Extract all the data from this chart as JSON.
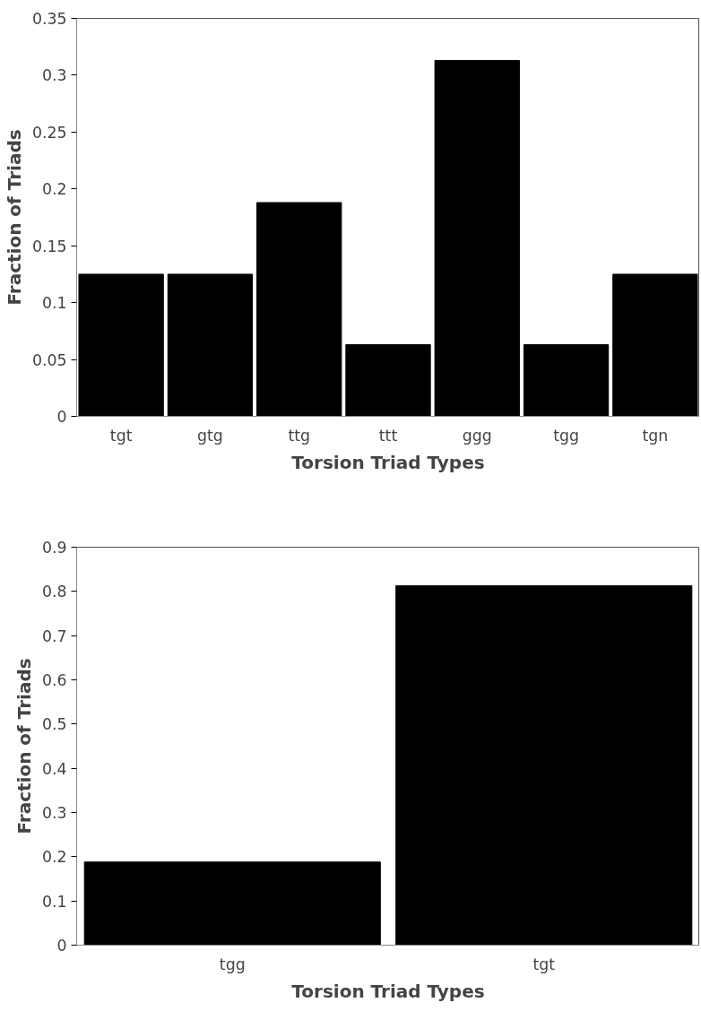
{
  "chart_data": [
    {
      "type": "bar",
      "categories": [
        "tgt",
        "gtg",
        "ttg",
        "ttt",
        "ggg",
        "tgg",
        "tgn"
      ],
      "values": [
        0.125,
        0.125,
        0.188,
        0.063,
        0.313,
        0.063,
        0.125
      ],
      "color": "#000000",
      "ylim": [
        0,
        0.35
      ],
      "yticks": [
        0,
        0.05,
        0.1,
        0.15,
        0.2,
        0.25,
        0.3,
        0.35
      ],
      "xlabel": "Torsion Triad Types",
      "ylabel": "Fraction of Triads"
    },
    {
      "type": "bar",
      "categories": [
        "tgg",
        "tgt"
      ],
      "values": [
        0.188,
        0.813
      ],
      "color": "#000000",
      "ylim": [
        0,
        0.9
      ],
      "yticks": [
        0,
        0.1,
        0.2,
        0.3,
        0.4,
        0.5,
        0.6,
        0.7,
        0.8,
        0.9
      ],
      "xlabel": "Torsion Triad Types",
      "ylabel": "Fraction of Triads"
    }
  ]
}
